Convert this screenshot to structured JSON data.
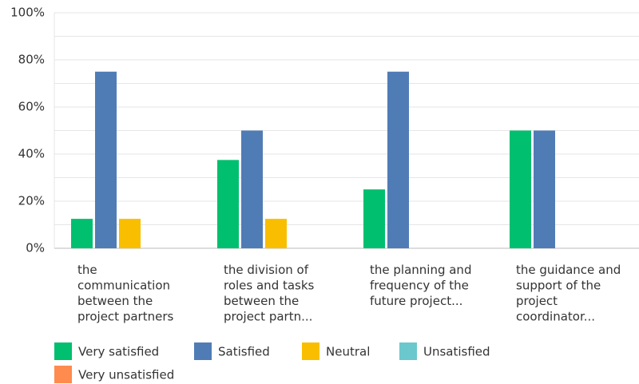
{
  "chart_data": {
    "type": "bar",
    "categories": [
      "the communication between the project partners",
      "the division of roles and tasks between the project partn...",
      "the planning and frequency of the future project...",
      "the guidance and support of the project coordinator..."
    ],
    "series": [
      {
        "name": "Very satisfied",
        "color": "#00bf6f",
        "values": [
          12.5,
          37.5,
          25,
          50
        ]
      },
      {
        "name": "Satisfied",
        "color": "#507cb6",
        "values": [
          75,
          50,
          75,
          50
        ]
      },
      {
        "name": "Neutral",
        "color": "#f9be00",
        "values": [
          12.5,
          12.5,
          0,
          0
        ]
      },
      {
        "name": "Unsatisfied",
        "color": "#6bc8cd",
        "values": [
          0,
          0,
          0,
          0
        ]
      },
      {
        "name": "Very unsatisfied",
        "color": "#ff8b4f",
        "values": [
          0,
          0,
          0,
          0
        ]
      }
    ],
    "ylim": [
      0,
      100
    ],
    "yticks": [
      {
        "value": 0,
        "label": "0%"
      },
      {
        "value": 20,
        "label": "20%"
      },
      {
        "value": 40,
        "label": "40%"
      },
      {
        "value": 60,
        "label": "60%"
      },
      {
        "value": 80,
        "label": "80%"
      },
      {
        "value": 100,
        "label": "100%"
      }
    ],
    "minor_yticks": [
      10,
      30,
      50,
      70,
      90
    ],
    "grid": true
  }
}
